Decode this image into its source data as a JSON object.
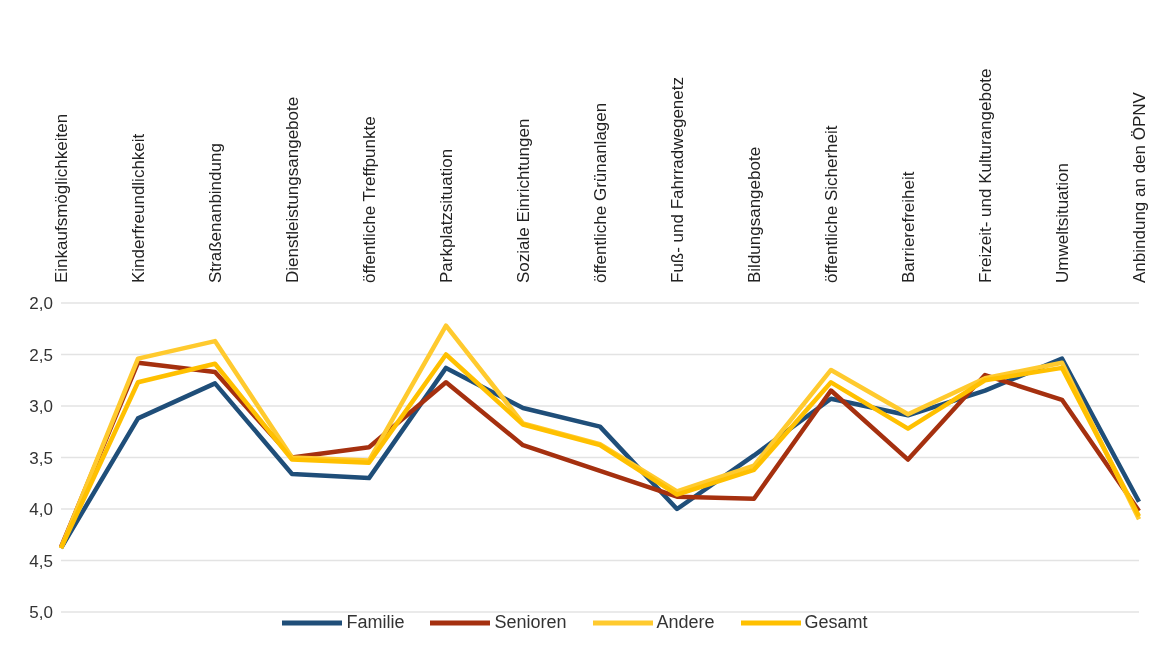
{
  "chart_data": {
    "type": "line",
    "categories": [
      "Einkaufsmöglichkeiten",
      "Kinderfreundlichkeit",
      "Straßenanbindung",
      "Dienstleistungsangebote",
      "öffentliche Treffpunkte",
      "Parkplatzsituation",
      "Soziale Einrichtungen",
      "öffentliche Grünanlagen",
      "Fuß- und Fahrradwegenetz",
      "Bildungsangebote",
      "öffentliche Sicherheit",
      "Barrierefreiheit",
      "Freizeit- und Kulturangebote",
      "Umweltsituation",
      "Anbindung an den ÖPNV"
    ],
    "series": [
      {
        "name": "Familie",
        "color": "#1f4e79",
        "values": [
          4.38,
          3.12,
          2.78,
          3.66,
          3.7,
          2.63,
          3.02,
          3.2,
          4.0,
          3.48,
          2.93,
          3.09,
          2.85,
          2.54,
          3.93
        ]
      },
      {
        "name": "Senioren",
        "color": "#a5300f",
        "values": [
          4.37,
          2.58,
          2.67,
          3.5,
          3.4,
          2.77,
          3.38,
          3.63,
          3.88,
          3.9,
          2.85,
          3.52,
          2.7,
          2.94,
          4.02
        ]
      },
      {
        "name": "Andere",
        "color": "#ffca2e",
        "values": [
          4.38,
          2.54,
          2.37,
          3.5,
          3.53,
          2.22,
          3.17,
          3.37,
          3.83,
          3.58,
          2.65,
          3.08,
          2.73,
          2.58,
          4.1
        ]
      },
      {
        "name": "Gesamt",
        "color": "#ffc000",
        "values": [
          4.38,
          2.77,
          2.59,
          3.52,
          3.55,
          2.5,
          3.18,
          3.38,
          3.86,
          3.62,
          2.77,
          3.22,
          2.75,
          2.63,
          4.07
        ]
      }
    ],
    "ylim": [
      5.0,
      2.0
    ],
    "yticks": [
      {
        "value": 2.0,
        "label": "2,0"
      },
      {
        "value": 2.5,
        "label": "2,5"
      },
      {
        "value": 3.0,
        "label": "3,0"
      },
      {
        "value": 3.5,
        "label": "3,5"
      },
      {
        "value": 4.0,
        "label": "4,0"
      },
      {
        "value": 4.5,
        "label": "4,5"
      },
      {
        "value": 5.0,
        "label": "5,0"
      }
    ],
    "grid": "y",
    "legend": "bottom",
    "marker": "none",
    "line_style": "solid"
  }
}
